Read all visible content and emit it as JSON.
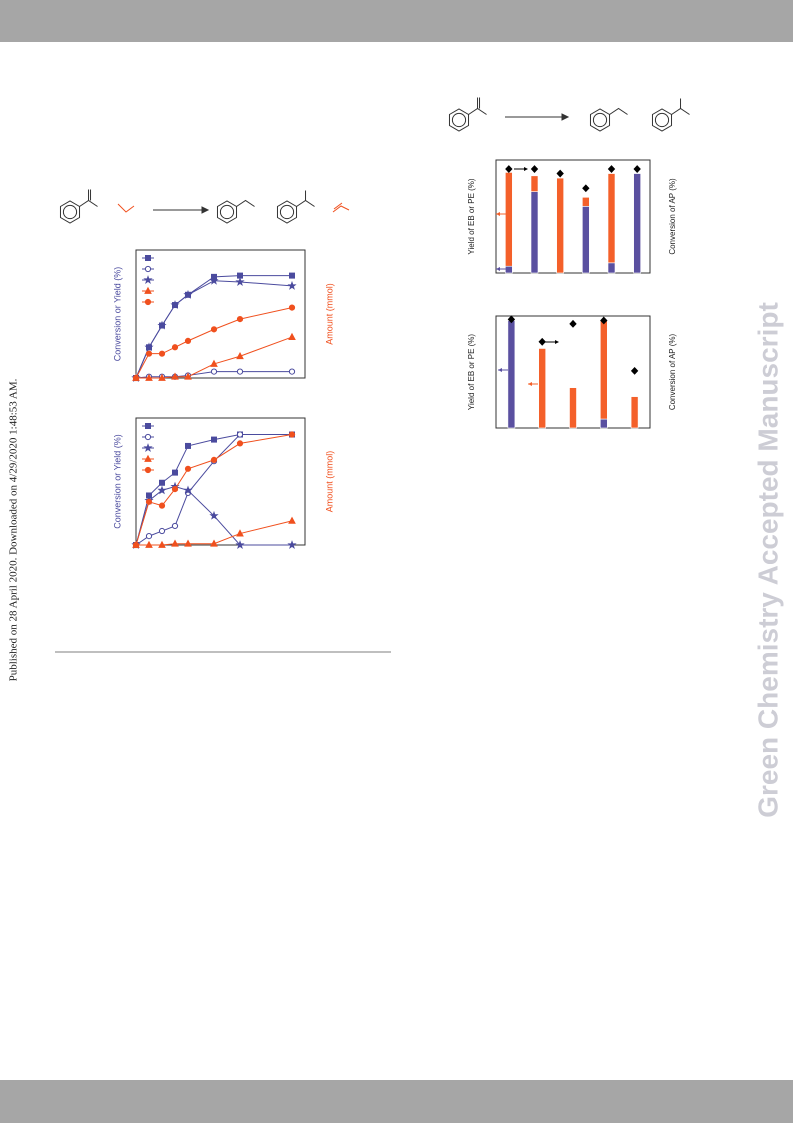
{
  "stamp": "Published on 28 April 2020. Downloaded on 4/29/2020 1:48:53 AM.",
  "watermark": "Green Chemistry Accepted Manuscript",
  "chart_data": [
    {
      "type": "line",
      "ylabel": "Conversion or Yield (%)",
      "y2label": "Amount (mmol)",
      "x": [
        0,
        0.5,
        1,
        1.5,
        2,
        3,
        4,
        6
      ],
      "xlim": [
        0,
        6.5
      ],
      "ylim": [
        0,
        100
      ],
      "y2lim": [
        0,
        100
      ],
      "legend": "upper left",
      "series": [
        {
          "color": "#4b4b9e",
          "marker": "square",
          "filled": true,
          "values": [
            0,
            24,
            41,
            57,
            65,
            79,
            80,
            80
          ]
        },
        {
          "color": "#4b4b9e",
          "marker": "circle",
          "filled": false,
          "values": [
            0,
            1,
            1,
            1,
            2,
            5,
            5,
            5
          ]
        },
        {
          "color": "#4b4b9e",
          "marker": "star",
          "filled": true,
          "values": [
            0,
            24,
            41,
            57,
            65,
            76,
            75,
            72
          ]
        },
        {
          "color": "#f0501e",
          "marker": "triangle",
          "filled": true,
          "axis": "y2",
          "values": [
            0,
            0,
            0,
            1,
            1,
            11,
            17,
            32
          ]
        },
        {
          "color": "#f0501e",
          "marker": "circle",
          "filled": true,
          "axis": "y2",
          "values": [
            0,
            19,
            19,
            24,
            29,
            38,
            46,
            55
          ]
        }
      ]
    },
    {
      "type": "line",
      "ylabel": "Conversion or Yield (%)",
      "y2label": "Amount (mmol)",
      "x": [
        0,
        0.5,
        1,
        1.5,
        2,
        3,
        4,
        6
      ],
      "xlim": [
        0,
        6.5
      ],
      "ylim": [
        0,
        100
      ],
      "y2lim": [
        0,
        100
      ],
      "legend": "upper left",
      "series": [
        {
          "color": "#4b4b9e",
          "marker": "square",
          "filled": true,
          "values": [
            0,
            39,
            49,
            57,
            78,
            83,
            87,
            87
          ]
        },
        {
          "color": "#4b4b9e",
          "marker": "circle",
          "filled": false,
          "values": [
            0,
            7,
            11,
            15,
            41,
            66,
            87,
            87
          ]
        },
        {
          "color": "#4b4b9e",
          "marker": "star",
          "filled": true,
          "values": [
            0,
            35,
            43,
            46,
            43,
            23,
            0,
            0
          ]
        },
        {
          "color": "#f0501e",
          "marker": "triangle",
          "filled": true,
          "axis": "y2",
          "values": [
            0,
            0,
            0,
            1,
            1,
            1,
            9,
            19
          ]
        },
        {
          "color": "#f0501e",
          "marker": "circle",
          "filled": true,
          "axis": "y2",
          "values": [
            0,
            34,
            31,
            44,
            60,
            67,
            80,
            87
          ]
        }
      ]
    },
    {
      "type": "bar",
      "stacked": true,
      "ylabel": "Yield of EB or PE (%)",
      "y2label": "Conversion of AP (%)",
      "categories": [
        null,
        null,
        null,
        null,
        null,
        null
      ],
      "ylim": [
        0,
        100
      ],
      "y2lim": [
        0,
        100
      ],
      "series": [
        {
          "color": "#5a50a0",
          "values": [
            6,
            72,
            0,
            59,
            9,
            88
          ]
        },
        {
          "color": "#f4602a",
          "values": [
            83,
            14,
            84,
            8,
            79,
            0
          ]
        },
        {
          "color": "#000000",
          "marker": "diamond",
          "axis": "y2",
          "values": [
            92,
            92,
            88,
            75,
            92,
            92
          ]
        }
      ]
    },
    {
      "type": "bar",
      "stacked": true,
      "ylabel": "Yield of EB or PE (%)",
      "y2label": "Conversion of AP (%)",
      "categories": [
        null,
        null,
        null,
        null,
        null
      ],
      "ylim": [
        0,
        100
      ],
      "y2lim": [
        0,
        100
      ],
      "series": [
        {
          "color": "#5a50a0",
          "values": [
            96,
            0,
            0,
            8,
            0
          ]
        },
        {
          "color": "#f4602a",
          "values": [
            0,
            71,
            36,
            88,
            28
          ]
        },
        {
          "color": "#000000",
          "marker": "diamond",
          "axis": "y2",
          "values": [
            97,
            77,
            93,
            96,
            51
          ]
        }
      ]
    }
  ]
}
